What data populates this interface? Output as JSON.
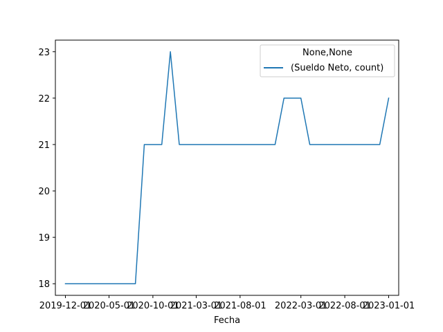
{
  "chart_data": {
    "type": "line",
    "title": "",
    "xlabel": "Fecha",
    "ylabel": "",
    "x_tick_labels": [
      "2019-12-01",
      "2020-05-01",
      "2020-10-01",
      "2021-03-01",
      "2021-08-01",
      "2022-03-01",
      "2022-08-01",
      "2023-01-01"
    ],
    "y_tick_labels": [
      "18",
      "19",
      "20",
      "21",
      "22",
      "23"
    ],
    "ylim": [
      17.75,
      23.25
    ],
    "xlim": [
      "2019-10-27",
      "2023-02-05"
    ],
    "grid": false,
    "legend": {
      "title": "None,None",
      "placement": "top-right",
      "entries": [
        "(Sueldo Neto, count)"
      ]
    },
    "series": [
      {
        "name": "(Sueldo Neto, count)",
        "color": "#1f77b4",
        "x": [
          "2019-12-01",
          "2020-01-01",
          "2020-02-01",
          "2020-03-01",
          "2020-04-01",
          "2020-05-01",
          "2020-06-01",
          "2020-07-01",
          "2020-08-01",
          "2020-09-01",
          "2020-10-01",
          "2020-11-01",
          "2020-12-01",
          "2021-01-01",
          "2021-02-01",
          "2021-03-01",
          "2021-04-01",
          "2021-05-01",
          "2021-06-01",
          "2021-07-01",
          "2021-08-01",
          "2021-09-01",
          "2021-10-01",
          "2021-11-01",
          "2021-12-01",
          "2022-01-01",
          "2022-02-01",
          "2022-03-01",
          "2022-04-01",
          "2022-05-01",
          "2022-06-01",
          "2022-07-01",
          "2022-08-01",
          "2022-09-01",
          "2022-10-01",
          "2022-11-01",
          "2022-12-01",
          "2023-01-01"
        ],
        "values": [
          18,
          18,
          18,
          18,
          18,
          18,
          18,
          18,
          18,
          21,
          21,
          21,
          23,
          21,
          21,
          21,
          21,
          21,
          21,
          21,
          21,
          21,
          21,
          21,
          21,
          22,
          22,
          22,
          21,
          21,
          21,
          21,
          21,
          21,
          21,
          21,
          21,
          22
        ]
      }
    ]
  }
}
